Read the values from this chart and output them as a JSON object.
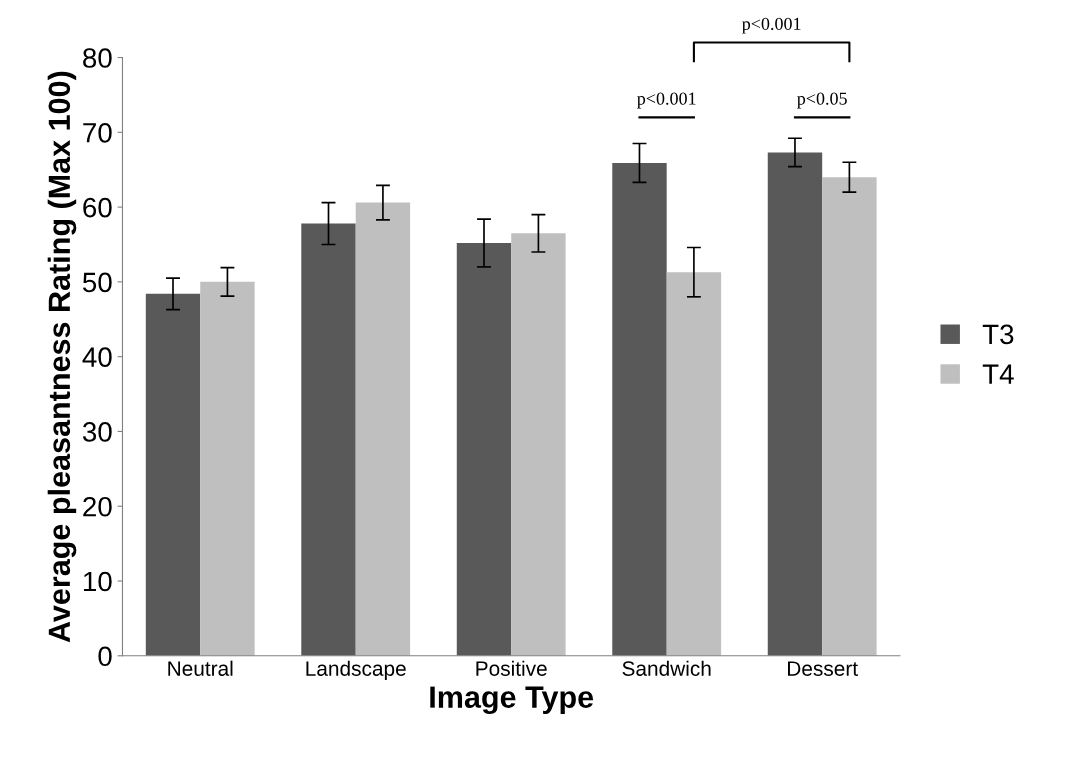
{
  "chart_data": {
    "type": "bar",
    "xlabel": "Image Type",
    "ylabel": "Average pleasantness Rating (Max 100)",
    "categories": [
      "Neutral",
      "Landscape",
      "Positive",
      "Sandwich",
      "Dessert"
    ],
    "series": [
      {
        "name": "T3",
        "color": "#595959",
        "values": [
          48.4,
          57.8,
          55.2,
          65.9,
          67.3
        ],
        "errors": [
          2.1,
          2.8,
          3.2,
          2.6,
          1.9
        ]
      },
      {
        "name": "T4",
        "color": "#bfbfbf",
        "values": [
          50.0,
          60.6,
          56.5,
          51.3,
          64.0
        ],
        "errors": [
          1.9,
          2.3,
          2.5,
          3.3,
          2.0
        ]
      }
    ],
    "ylim": [
      0,
      80
    ],
    "yticks": [
      0,
      10,
      20,
      30,
      40,
      50,
      60,
      70,
      80
    ],
    "grid": false,
    "legend": "right",
    "annotations": [
      "p<0.001",
      "p<0.05",
      "p<0.001"
    ]
  }
}
